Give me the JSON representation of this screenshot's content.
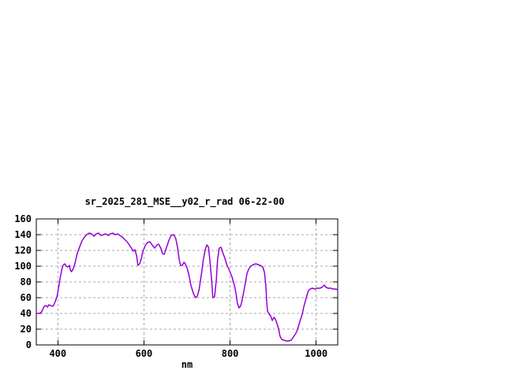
{
  "page": {
    "background": "#ffffff"
  },
  "chart_data": {
    "type": "line",
    "title": "sr_2025_281_MSE__y02_r_rad 06-22-00",
    "xlabel": "nm",
    "ylabel": "",
    "xlim": [
      350,
      1050
    ],
    "ylim": [
      0,
      160
    ],
    "x_ticks": [
      400,
      600,
      800,
      1000
    ],
    "y_ticks": [
      0,
      20,
      40,
      60,
      80,
      100,
      120,
      140,
      160
    ],
    "grid": true,
    "legend": "none",
    "line_color": "#9400d3",
    "grid_color": "#a8a8a8",
    "frame_color": "#000000",
    "series": [
      {
        "name": "sr_2025_281_MSE__y02_r_rad 06-22-00",
        "x": [
          350,
          356,
          361,
          365,
          368,
          372,
          376,
          379,
          383,
          387,
          390,
          394,
          398,
          401,
          405,
          409,
          412,
          416,
          420,
          423,
          427,
          429,
          432,
          436,
          440,
          445,
          451,
          456,
          462,
          467,
          473,
          478,
          484,
          489,
          495,
          500,
          506,
          511,
          517,
          522,
          528,
          533,
          539,
          544,
          550,
          555,
          561,
          566,
          572,
          575,
          579,
          583,
          586,
          590,
          594,
          597,
          603,
          608,
          614,
          619,
          625,
          630,
          634,
          640,
          643,
          647,
          652,
          658,
          663,
          669,
          674,
          678,
          682,
          685,
          689,
          693,
          696,
          700,
          704,
          709,
          715,
          720,
          724,
          728,
          733,
          738,
          742,
          746,
          750,
          753,
          757,
          760,
          764,
          768,
          771,
          775,
          779,
          782,
          788,
          793,
          799,
          804,
          810,
          814,
          817,
          821,
          825,
          828,
          832,
          836,
          839,
          843,
          848,
          854,
          860,
          865,
          870,
          876,
          880,
          883,
          885,
          887,
          891,
          894,
          898,
          902,
          905,
          909,
          913,
          916,
          920,
          925,
          931,
          936,
          942,
          947,
          953,
          957,
          960,
          964,
          968,
          971,
          975,
          979,
          982,
          986,
          991,
          997,
          1002,
          1008,
          1013,
          1019,
          1023,
          1028,
          1034,
          1039,
          1045,
          1050
        ],
        "y": [
          40,
          40,
          41,
          45,
          49,
          50,
          48,
          51,
          50,
          49,
          50,
          55,
          61,
          70,
          84,
          95,
          101,
          103,
          100,
          99,
          101,
          95,
          93,
          97,
          104,
          116,
          125,
          132,
          137,
          140,
          142,
          141,
          138,
          141,
          142,
          139,
          140,
          141,
          139,
          141,
          142,
          140,
          141,
          139,
          137,
          134,
          131,
          127,
          122,
          119,
          121,
          113,
          101,
          103,
          110,
          118,
          126,
          130,
          131,
          127,
          123,
          127,
          128,
          122,
          116,
          115,
          123,
          133,
          139,
          140,
          135,
          124,
          108,
          101,
          101,
          105,
          103,
          98,
          90,
          76,
          65,
          60,
          62,
          70,
          88,
          108,
          120,
          127,
          124,
          108,
          84,
          60,
          61,
          82,
          108,
          123,
          124,
          119,
          110,
          101,
          94,
          87,
          76,
          65,
          53,
          47,
          50,
          57,
          68,
          80,
          90,
          96,
          100,
          102,
          103,
          102,
          101,
          99,
          92,
          75,
          55,
          43,
          39,
          37,
          31,
          35,
          33,
          27,
          20,
          11,
          7,
          6,
          5,
          5,
          6,
          10,
          15,
          20,
          26,
          33,
          40,
          48,
          56,
          64,
          69,
          71,
          72,
          71,
          72,
          72,
          73,
          76,
          73,
          72,
          72,
          71,
          71,
          70
        ]
      }
    ]
  }
}
